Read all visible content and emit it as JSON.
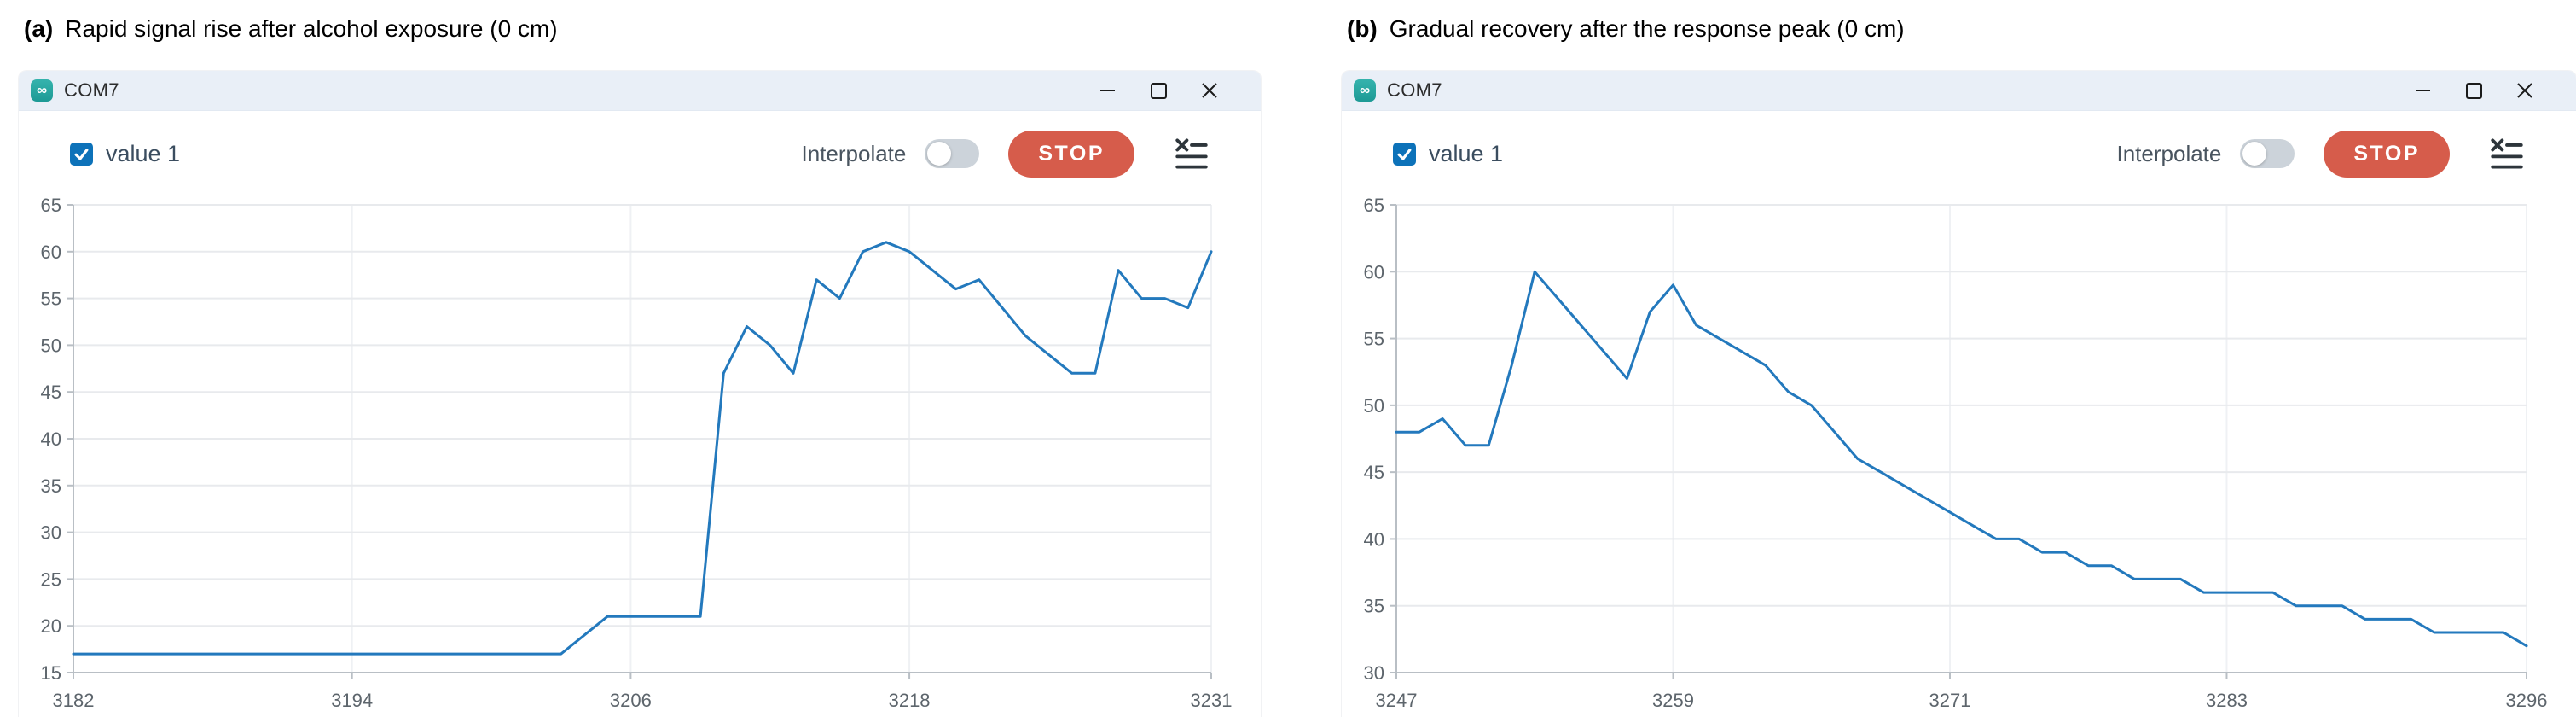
{
  "colors": {
    "line_blue": "#2379bd",
    "checkbox_blue": "#0d72b9",
    "stop_red": "#d65c4b",
    "titlebar_bg": "#e9eff7",
    "arduino_teal": "#25a7a1",
    "grid": "#e8eaed",
    "vgrid": "#eff1f4",
    "axis": "#b9bfc5",
    "tick_label": "#5d656c"
  },
  "panels": [
    {
      "caption": {
        "prefix": "(a)",
        "text": "Rapid signal rise after alcohol exposure (0 cm)"
      },
      "window": {
        "title": "COM7",
        "app_icon": "arduino-icon",
        "controls": [
          "minimize",
          "maximize",
          "close"
        ]
      },
      "toolbar": {
        "series_checkbox": {
          "checked": true,
          "label": "value 1"
        },
        "interpolate_label": "Interpolate",
        "interpolate_on": false,
        "stop_label": "STOP",
        "clear_icon": "clear-list-icon"
      },
      "chart_data": {
        "type": "line",
        "series": [
          {
            "name": "value 1"
          }
        ],
        "x_min": 3182,
        "x_max": 3231,
        "x_ticks": [
          3182,
          3194,
          3206,
          3218,
          3231
        ],
        "ylim": [
          15,
          65
        ],
        "y_step": 5,
        "y_ticks": [
          65,
          60,
          55,
          50,
          45,
          40,
          35,
          30,
          25,
          20,
          15
        ],
        "grid": true,
        "legend_position": "none",
        "values": [
          17,
          17,
          17,
          17,
          17,
          17,
          17,
          17,
          17,
          17,
          17,
          17,
          17,
          17,
          17,
          17,
          17,
          17,
          17,
          17,
          17,
          17,
          19,
          21,
          21,
          21,
          21,
          21,
          47,
          52,
          50,
          47,
          57,
          55,
          60,
          61,
          60,
          58,
          56,
          57,
          54,
          51,
          49,
          47,
          47,
          58,
          55,
          55,
          54,
          60
        ]
      }
    },
    {
      "caption": {
        "prefix": "(b)",
        "text": "Gradual recovery after the response peak (0 cm)"
      },
      "window": {
        "title": "COM7",
        "app_icon": "arduino-icon",
        "controls": [
          "minimize",
          "maximize",
          "close"
        ]
      },
      "toolbar": {
        "series_checkbox": {
          "checked": true,
          "label": "value 1"
        },
        "interpolate_label": "Interpolate",
        "interpolate_on": false,
        "stop_label": "STOP",
        "clear_icon": "clear-list-icon"
      },
      "chart_data": {
        "type": "line",
        "series": [
          {
            "name": "value 1"
          }
        ],
        "x_min": 3247,
        "x_max": 3296,
        "x_ticks": [
          3247,
          3259,
          3271,
          3283,
          3296
        ],
        "ylim": [
          30,
          65
        ],
        "y_step": 5,
        "y_ticks": [
          65,
          60,
          55,
          50,
          45,
          40,
          35,
          30
        ],
        "grid": true,
        "legend_position": "none",
        "values": [
          48,
          48,
          49,
          47,
          47,
          53,
          60,
          58,
          56,
          54,
          52,
          57,
          59,
          56,
          55,
          54,
          53,
          51,
          50,
          48,
          46,
          45,
          44,
          43,
          42,
          41,
          40,
          40,
          39,
          39,
          38,
          38,
          37,
          37,
          37,
          36,
          36,
          36,
          36,
          35,
          35,
          35,
          34,
          34,
          34,
          33,
          33,
          33,
          33,
          32
        ]
      }
    }
  ]
}
